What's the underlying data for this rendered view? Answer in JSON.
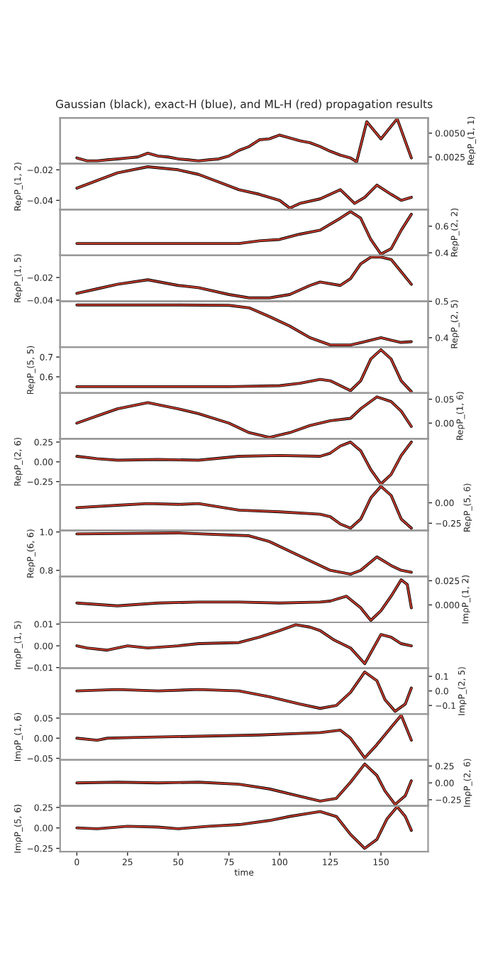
{
  "chart_data": [
    {
      "type": "line",
      "title": "Gaussian (black), exact-H (blue), and ML-H (red) propagation results",
      "y2label": "ReρP_(1, 1)",
      "y2lim": [
        0.0018,
        0.0066
      ],
      "y2ticks": [
        0.0025,
        {
          "value": 0.005,
          "label": "0.0050"
        }
      ],
      "xlim": [
        -8.25,
        173.25
      ],
      "tick_labels": "y2",
      "grid": false,
      "x": [
        0,
        5,
        10,
        15,
        20,
        25,
        30,
        35,
        40,
        45,
        50,
        55,
        60,
        65,
        70,
        75,
        80,
        85,
        90,
        95,
        100,
        105,
        110,
        115,
        120,
        125,
        130,
        135,
        138,
        143,
        150,
        158,
        165
      ],
      "series": [
        {
          "color": "#000000",
          "axis": "y2",
          "values": [
            0.0024,
            0.0021,
            0.0021,
            0.0022,
            0.0023,
            0.0024,
            0.0025,
            0.0029,
            0.0026,
            0.0025,
            0.0023,
            0.0022,
            0.0021,
            0.0022,
            0.0023,
            0.0026,
            0.0032,
            0.0036,
            0.0043,
            0.0044,
            0.0048,
            0.0045,
            0.0042,
            0.004,
            0.0036,
            0.0031,
            0.0027,
            0.0024,
            0.002,
            0.0062,
            0.0044,
            0.0065,
            0.0024
          ]
        },
        {
          "color": "#c0392b",
          "axis": "y2",
          "values": [
            0.0024,
            0.0021,
            0.0021,
            0.0022,
            0.0023,
            0.0024,
            0.0025,
            0.0029,
            0.0026,
            0.0025,
            0.0023,
            0.0022,
            0.0021,
            0.0022,
            0.0023,
            0.0026,
            0.0032,
            0.0036,
            0.0043,
            0.0044,
            0.0048,
            0.0045,
            0.0042,
            0.004,
            0.0036,
            0.0031,
            0.0027,
            0.0024,
            0.002,
            0.0062,
            0.0044,
            0.0065,
            0.0024
          ]
        }
      ]
    },
    {
      "type": "line",
      "ylabel": "ReρP_(1, 2)",
      "ylim": [
        -0.046,
        -0.016
      ],
      "yticks": [
        {
          "value": -0.04,
          "label": "−0.04"
        },
        {
          "value": -0.02,
          "label": "−0.02"
        }
      ],
      "xlim": [
        -8.25,
        173.25
      ],
      "tick_labels": "y",
      "grid": false,
      "x": [
        0,
        10,
        20,
        35,
        50,
        60,
        70,
        80,
        90,
        100,
        105,
        110,
        120,
        130,
        137,
        142,
        148,
        155,
        160,
        165
      ],
      "series": [
        {
          "color": "#000000",
          "values": [
            -0.032,
            -0.027,
            -0.022,
            -0.018,
            -0.02,
            -0.023,
            -0.028,
            -0.033,
            -0.036,
            -0.04,
            -0.045,
            -0.042,
            -0.039,
            -0.033,
            -0.042,
            -0.038,
            -0.03,
            -0.036,
            -0.04,
            -0.038
          ]
        },
        {
          "color": "#c0392b",
          "values": [
            -0.032,
            -0.027,
            -0.022,
            -0.018,
            -0.02,
            -0.023,
            -0.028,
            -0.033,
            -0.036,
            -0.04,
            -0.045,
            -0.042,
            -0.039,
            -0.033,
            -0.042,
            -0.038,
            -0.03,
            -0.036,
            -0.04,
            -0.038
          ]
        }
      ]
    },
    {
      "type": "line",
      "y2label": "ReρP_(2, 2)",
      "y2lim": [
        0.38,
        0.725
      ],
      "y2ticks": [
        0.4,
        0.6
      ],
      "xlim": [
        -8.25,
        173.25
      ],
      "tick_labels": "y2",
      "grid": false,
      "x": [
        0,
        20,
        40,
        60,
        80,
        90,
        100,
        110,
        120,
        130,
        135,
        140,
        145,
        150,
        155,
        160,
        165
      ],
      "series": [
        {
          "color": "#000000",
          "axis": "y2",
          "values": [
            0.47,
            0.47,
            0.47,
            0.47,
            0.47,
            0.49,
            0.5,
            0.54,
            0.57,
            0.66,
            0.71,
            0.66,
            0.5,
            0.39,
            0.43,
            0.57,
            0.69
          ]
        },
        {
          "color": "#c0392b",
          "axis": "y2",
          "values": [
            0.47,
            0.47,
            0.47,
            0.47,
            0.47,
            0.49,
            0.5,
            0.54,
            0.57,
            0.66,
            0.71,
            0.66,
            0.5,
            0.39,
            0.43,
            0.57,
            0.69
          ]
        }
      ]
    },
    {
      "type": "line",
      "ylabel": "ReρP_(1, 5)",
      "ylim": [
        -0.041,
        -0.0005
      ],
      "yticks": [
        {
          "value": -0.04,
          "label": "−0.04"
        },
        {
          "value": -0.02,
          "label": "−0.02"
        }
      ],
      "xlim": [
        -8.25,
        173.25
      ],
      "tick_labels": "y",
      "grid": false,
      "x": [
        0,
        10,
        20,
        35,
        50,
        60,
        75,
        85,
        95,
        105,
        115,
        120,
        130,
        135,
        140,
        145,
        150,
        155,
        160,
        165
      ],
      "series": [
        {
          "color": "#000000",
          "values": [
            -0.034,
            -0.03,
            -0.026,
            -0.022,
            -0.027,
            -0.029,
            -0.035,
            -0.038,
            -0.038,
            -0.035,
            -0.027,
            -0.024,
            -0.027,
            -0.021,
            -0.008,
            -0.002,
            -0.002,
            -0.004,
            -0.015,
            -0.026
          ]
        },
        {
          "color": "#c0392b",
          "values": [
            -0.034,
            -0.03,
            -0.026,
            -0.022,
            -0.027,
            -0.029,
            -0.035,
            -0.038,
            -0.038,
            -0.035,
            -0.027,
            -0.024,
            -0.027,
            -0.021,
            -0.008,
            -0.002,
            -0.002,
            -0.004,
            -0.015,
            -0.026
          ]
        }
      ]
    },
    {
      "type": "line",
      "y2label": "ReρP_(2, 5)",
      "y2lim": [
        0.374,
        0.5
      ],
      "y2ticks": [
        0.4,
        0.5
      ],
      "xlim": [
        -8.25,
        173.25
      ],
      "tick_labels": "y2",
      "grid": false,
      "x": [
        0,
        25,
        50,
        75,
        85,
        95,
        105,
        115,
        125,
        135,
        145,
        150,
        155,
        160,
        165
      ],
      "series": [
        {
          "color": "#000000",
          "axis": "y2",
          "values": [
            0.49,
            0.49,
            0.49,
            0.489,
            0.482,
            0.458,
            0.432,
            0.4,
            0.38,
            0.38,
            0.393,
            0.4,
            0.393,
            0.387,
            0.389
          ]
        },
        {
          "color": "#c0392b",
          "axis": "y2",
          "values": [
            0.49,
            0.49,
            0.49,
            0.489,
            0.482,
            0.458,
            0.432,
            0.4,
            0.38,
            0.38,
            0.393,
            0.4,
            0.393,
            0.387,
            0.389
          ]
        }
      ]
    },
    {
      "type": "line",
      "ylabel": "ReρP_(5, 5)",
      "ylim": [
        0.518,
        0.75
      ],
      "yticks": [
        0.6,
        0.7
      ],
      "xlim": [
        -8.25,
        173.25
      ],
      "tick_labels": "y",
      "grid": false,
      "x": [
        0,
        25,
        50,
        75,
        100,
        110,
        120,
        125,
        135,
        140,
        145,
        150,
        155,
        160,
        165
      ],
      "series": [
        {
          "color": "#000000",
          "values": [
            0.55,
            0.55,
            0.55,
            0.55,
            0.555,
            0.567,
            0.587,
            0.58,
            0.53,
            0.58,
            0.69,
            0.737,
            0.69,
            0.58,
            0.525
          ]
        },
        {
          "color": "#c0392b",
          "values": [
            0.55,
            0.55,
            0.55,
            0.55,
            0.555,
            0.567,
            0.587,
            0.58,
            0.53,
            0.58,
            0.69,
            0.737,
            0.69,
            0.58,
            0.525
          ]
        }
      ]
    },
    {
      "type": "line",
      "y2label": "ReρP_(1, 6)",
      "y2lim": [
        -0.033,
        0.063
      ],
      "y2ticks": [
        {
          "value": 0,
          "label": "0.00"
        },
        {
          "value": 0.05,
          "label": "0.05"
        }
      ],
      "xlim": [
        -8.25,
        173.25
      ],
      "tick_labels": "y2",
      "grid": false,
      "x": [
        0,
        10,
        20,
        35,
        50,
        60,
        75,
        85,
        95,
        105,
        115,
        125,
        135,
        140,
        148,
        155,
        160,
        165
      ],
      "series": [
        {
          "color": "#000000",
          "axis": "y2",
          "values": [
            0.0,
            0.015,
            0.03,
            0.043,
            0.03,
            0.02,
            0.0,
            -0.02,
            -0.03,
            -0.02,
            -0.005,
            0.005,
            0.01,
            0.03,
            0.055,
            0.045,
            0.025,
            -0.007
          ]
        },
        {
          "color": "#c0392b",
          "axis": "y2",
          "values": [
            0.0,
            0.015,
            0.03,
            0.043,
            0.03,
            0.02,
            0.0,
            -0.02,
            -0.03,
            -0.02,
            -0.005,
            0.005,
            0.01,
            0.03,
            0.055,
            0.045,
            0.025,
            -0.007
          ]
        }
      ]
    },
    {
      "type": "line",
      "ylabel": "ReρP_(2, 6)",
      "ylim": [
        -0.29,
        0.29
      ],
      "yticks": [
        {
          "value": -0.25,
          "label": "−0.25"
        },
        {
          "value": 0,
          "label": "0.00"
        },
        {
          "value": 0.25,
          "label": "0.25"
        }
      ],
      "xlim": [
        -8.25,
        173.25
      ],
      "tick_labels": "y",
      "grid": false,
      "x": [
        0,
        10,
        20,
        40,
        60,
        80,
        100,
        120,
        125,
        130,
        135,
        140,
        145,
        150,
        155,
        160,
        165
      ],
      "series": [
        {
          "color": "#000000",
          "values": [
            0.07,
            0.04,
            0.02,
            0.03,
            0.02,
            0.07,
            0.08,
            0.07,
            0.11,
            0.2,
            0.25,
            0.14,
            -0.1,
            -0.28,
            -0.16,
            0.08,
            0.25
          ]
        },
        {
          "color": "#c0392b",
          "values": [
            0.07,
            0.04,
            0.02,
            0.03,
            0.02,
            0.07,
            0.08,
            0.07,
            0.11,
            0.2,
            0.25,
            0.14,
            -0.1,
            -0.28,
            -0.16,
            0.08,
            0.25
          ]
        }
      ]
    },
    {
      "type": "line",
      "y2label": "ReρP_(5, 6)",
      "y2lim": [
        -0.34,
        0.22
      ],
      "y2ticks": [
        {
          "value": -0.25,
          "label": "−0.25"
        },
        {
          "value": 0,
          "label": "0.00"
        }
      ],
      "xlim": [
        -8.25,
        173.25
      ],
      "tick_labels": "y2",
      "grid": false,
      "x": [
        0,
        20,
        35,
        50,
        60,
        80,
        100,
        120,
        125,
        130,
        135,
        140,
        145,
        150,
        155,
        160,
        165
      ],
      "series": [
        {
          "color": "#000000",
          "axis": "y2",
          "values": [
            -0.06,
            -0.03,
            -0.01,
            -0.02,
            -0.01,
            -0.09,
            -0.11,
            -0.14,
            -0.17,
            -0.26,
            -0.31,
            -0.2,
            0.06,
            0.2,
            0.09,
            -0.2,
            -0.31
          ]
        },
        {
          "color": "#c0392b",
          "axis": "y2",
          "values": [
            -0.06,
            -0.03,
            -0.01,
            -0.02,
            -0.01,
            -0.09,
            -0.11,
            -0.14,
            -0.17,
            -0.26,
            -0.31,
            -0.2,
            0.06,
            0.2,
            0.09,
            -0.2,
            -0.31
          ]
        }
      ]
    },
    {
      "type": "line",
      "ylabel": "ReρP_(6, 6)",
      "ylim": [
        0.768,
        1.007
      ],
      "yticks": [
        0.8,
        {
          "value": 1,
          "label": "1.0"
        }
      ],
      "xlim": [
        -8.25,
        173.25
      ],
      "tick_labels": "y",
      "grid": false,
      "x": [
        0,
        50,
        85,
        95,
        105,
        115,
        125,
        135,
        140,
        148,
        155,
        160,
        165
      ],
      "series": [
        {
          "color": "#000000",
          "values": [
            0.99,
            0.995,
            0.98,
            0.95,
            0.9,
            0.85,
            0.8,
            0.78,
            0.8,
            0.87,
            0.825,
            0.8,
            0.79
          ]
        },
        {
          "color": "#c0392b",
          "values": [
            0.99,
            0.995,
            0.98,
            0.95,
            0.9,
            0.85,
            0.8,
            0.78,
            0.8,
            0.87,
            0.825,
            0.8,
            0.79
          ]
        }
      ]
    },
    {
      "type": "line",
      "y2label": "ImρP_(1, 2)",
      "y2lim": [
        -0.018,
        0.0294
      ],
      "y2ticks": [
        {
          "value": 0,
          "label": "0.000"
        },
        0.025
      ],
      "xlim": [
        -8.25,
        173.25
      ],
      "tick_labels": "y2",
      "grid": false,
      "x": [
        0,
        20,
        40,
        60,
        80,
        100,
        120,
        125,
        133,
        140,
        145,
        150,
        155,
        160,
        163,
        165
      ],
      "series": [
        {
          "color": "#000000",
          "axis": "y2",
          "values": [
            0.002,
            -0.001,
            0.002,
            0.003,
            0.003,
            0.002,
            0.003,
            0.004,
            0.009,
            -0.003,
            -0.016,
            -0.006,
            0.009,
            0.026,
            0.021,
            -0.003
          ]
        },
        {
          "color": "#c0392b",
          "axis": "y2",
          "values": [
            0.002,
            -0.001,
            0.002,
            0.003,
            0.003,
            0.002,
            0.003,
            0.004,
            0.009,
            -0.003,
            -0.016,
            -0.006,
            0.009,
            0.026,
            0.021,
            -0.003
          ]
        }
      ]
    },
    {
      "type": "line",
      "ylabel": "ImρP_(1, 5)",
      "ylim": [
        -0.0103,
        0.0108
      ],
      "yticks": [
        {
          "value": -0.01,
          "label": "−0.01"
        },
        {
          "value": 0,
          "label": "0.00"
        },
        0.01
      ],
      "xlim": [
        -8.25,
        173.25
      ],
      "tick_labels": "y",
      "grid": false,
      "x": [
        0,
        5,
        15,
        25,
        35,
        50,
        60,
        80,
        90,
        100,
        108,
        115,
        120,
        127,
        135,
        142,
        150,
        155,
        160,
        165
      ],
      "series": [
        {
          "color": "#000000",
          "values": [
            0.0,
            -0.001,
            -0.002,
            0.0,
            -0.001,
            0.0,
            0.001,
            0.0015,
            0.004,
            0.007,
            0.0097,
            0.0086,
            0.007,
            0.0026,
            -0.001,
            -0.0082,
            0.0052,
            0.004,
            0.001,
            0.0
          ]
        },
        {
          "color": "#c0392b",
          "values": [
            0.0,
            -0.001,
            -0.002,
            0.0,
            -0.001,
            0.0,
            0.001,
            0.0015,
            0.004,
            0.007,
            0.0097,
            0.0086,
            0.007,
            0.0026,
            -0.001,
            -0.0082,
            0.0052,
            0.004,
            0.001,
            0.0
          ]
        }
      ]
    },
    {
      "type": "line",
      "y2label": "ImρP_(2, 5)",
      "y2lim": [
        -0.159,
        0.156
      ],
      "y2ticks": [
        {
          "value": -0.1,
          "label": "−0.1"
        },
        {
          "value": 0,
          "label": "0.0"
        },
        0.1
      ],
      "xlim": [
        -8.25,
        173.25
      ],
      "tick_labels": "y2",
      "grid": false,
      "x": [
        0,
        20,
        40,
        60,
        80,
        95,
        110,
        120,
        128,
        135,
        142,
        148,
        152,
        157,
        162,
        165
      ],
      "series": [
        {
          "color": "#000000",
          "axis": "y2",
          "values": [
            0.0,
            0.01,
            0.0,
            0.01,
            0.0,
            -0.04,
            -0.09,
            -0.12,
            -0.1,
            -0.01,
            0.13,
            0.07,
            -0.06,
            -0.14,
            -0.09,
            0.02
          ]
        },
        {
          "color": "#c0392b",
          "axis": "y2",
          "values": [
            0.0,
            0.01,
            0.0,
            0.01,
            0.0,
            -0.04,
            -0.09,
            -0.12,
            -0.1,
            -0.01,
            0.13,
            0.07,
            -0.06,
            -0.14,
            -0.09,
            0.02
          ]
        }
      ]
    },
    {
      "type": "line",
      "ylabel": "ImρP_(1, 6)",
      "ylim": [
        -0.054,
        0.06
      ],
      "yticks": [
        {
          "value": -0.05,
          "label": "−0.05"
        },
        {
          "value": 0,
          "label": "0.00"
        },
        0.05
      ],
      "xlim": [
        -8.25,
        173.25
      ],
      "tick_labels": "y",
      "grid": false,
      "x": [
        0,
        10,
        15,
        30,
        60,
        90,
        120,
        130,
        135,
        142,
        148,
        155,
        160,
        165
      ],
      "series": [
        {
          "color": "#000000",
          "values": [
            0.0,
            -0.005,
            0.0,
            0.002,
            0.005,
            0.008,
            0.014,
            0.02,
            0.0,
            -0.049,
            -0.016,
            0.027,
            0.057,
            -0.005
          ]
        },
        {
          "color": "#c0392b",
          "values": [
            0.0,
            -0.005,
            0.0,
            0.002,
            0.005,
            0.008,
            0.014,
            0.02,
            0.0,
            -0.049,
            -0.016,
            0.027,
            0.057,
            -0.005
          ]
        }
      ]
    },
    {
      "type": "line",
      "y2label": "ImρP_(2, 6)",
      "y2lim": [
        -0.34,
        0.34
      ],
      "y2ticks": [
        {
          "value": -0.25,
          "label": "−0.25"
        },
        {
          "value": 0,
          "label": "0.00"
        },
        0.25
      ],
      "xlim": [
        -8.25,
        173.25
      ],
      "tick_labels": "y2",
      "grid": false,
      "x": [
        0,
        20,
        40,
        60,
        80,
        95,
        110,
        120,
        128,
        135,
        142,
        148,
        152,
        157,
        162,
        165
      ],
      "series": [
        {
          "color": "#000000",
          "axis": "y2",
          "values": [
            0.0,
            0.01,
            0.0,
            0.01,
            -0.02,
            -0.09,
            -0.2,
            -0.27,
            -0.23,
            0.01,
            0.28,
            0.11,
            -0.12,
            -0.32,
            -0.19,
            0.03
          ]
        },
        {
          "color": "#c0392b",
          "axis": "y2",
          "values": [
            0.0,
            0.01,
            0.0,
            0.01,
            -0.02,
            -0.09,
            -0.2,
            -0.27,
            -0.23,
            0.01,
            0.28,
            0.11,
            -0.12,
            -0.32,
            -0.19,
            0.03
          ]
        }
      ]
    },
    {
      "type": "line",
      "ylabel": "ImρP_(5, 6)",
      "xlabel": "time",
      "ylim": [
        -0.29,
        0.27
      ],
      "yticks": [
        {
          "value": -0.25,
          "label": "−0.25"
        },
        {
          "value": 0,
          "label": "0.00"
        },
        0.25
      ],
      "xlim": [
        -8.25,
        173.25
      ],
      "xticks": [
        0,
        25,
        50,
        75,
        100,
        125,
        150
      ],
      "grid": false,
      "x": [
        0,
        10,
        25,
        40,
        50,
        65,
        80,
        95,
        105,
        115,
        120,
        128,
        135,
        142,
        148,
        153,
        158,
        162,
        165
      ],
      "series": [
        {
          "color": "#000000",
          "values": [
            0.0,
            -0.01,
            0.02,
            0.01,
            -0.01,
            0.02,
            0.04,
            0.09,
            0.14,
            0.18,
            0.2,
            0.14,
            -0.08,
            -0.25,
            -0.14,
            0.11,
            0.26,
            0.14,
            -0.03
          ]
        },
        {
          "color": "#c0392b",
          "values": [
            0.0,
            -0.01,
            0.02,
            0.01,
            -0.01,
            0.02,
            0.04,
            0.09,
            0.14,
            0.18,
            0.2,
            0.14,
            -0.08,
            -0.25,
            -0.14,
            0.11,
            0.26,
            0.14,
            -0.03
          ]
        }
      ]
    }
  ]
}
